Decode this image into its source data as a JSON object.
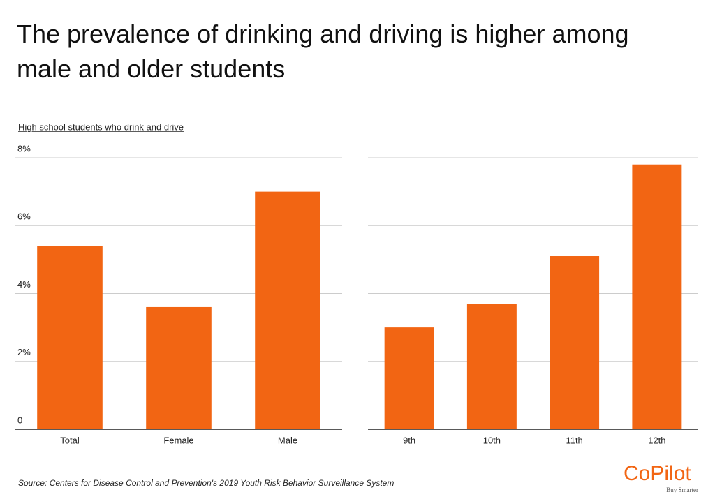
{
  "header": {
    "title": "The prevalence of drinking and driving is higher among male and older students",
    "subtitle": "High school students who drink and drive"
  },
  "chart_data": [
    {
      "type": "bar",
      "categories": [
        "Total",
        "Female",
        "Male"
      ],
      "values": [
        5.4,
        3.6,
        7.0
      ],
      "color": "#f26513",
      "ylim": [
        0,
        8
      ],
      "yticks": [
        0,
        {
          "value": 2,
          "label": "2%"
        },
        {
          "value": 4,
          "label": "4%"
        },
        {
          "value": 6,
          "label": "6%"
        },
        {
          "value": 8,
          "label": "8%"
        }
      ],
      "grid": true
    },
    {
      "type": "bar",
      "categories": [
        "9th",
        "10th",
        "11th",
        "12th"
      ],
      "values": [
        3.0,
        3.7,
        5.1,
        7.8
      ],
      "color": "#f26513",
      "ylim": [
        0,
        8
      ],
      "yticks": [
        0,
        2,
        4,
        6,
        8
      ],
      "grid": true,
      "ytick_labels": false
    }
  ],
  "footer": {
    "source": "Source:  Centers for Disease Control and Prevention's 2019 Youth Risk Behavior Surveillance System",
    "logo": "CoPilot",
    "tagline": "Buy Smarter"
  }
}
